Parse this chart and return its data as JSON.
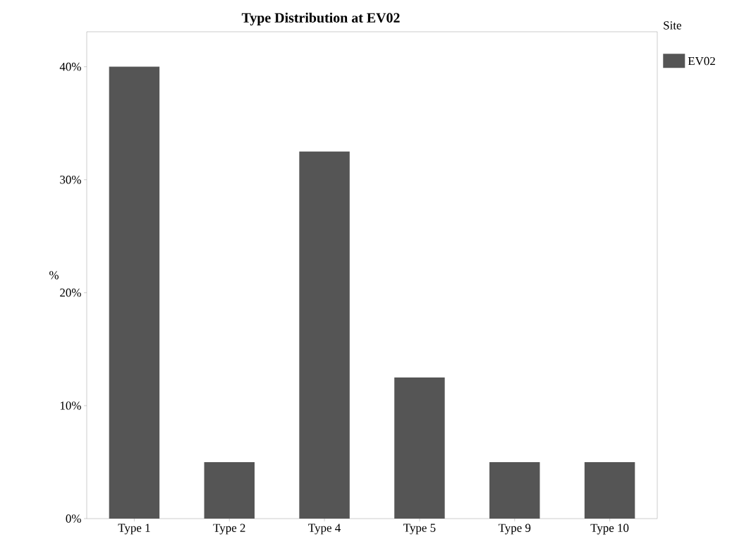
{
  "chart_data": {
    "type": "bar",
    "title": "Type Distribution at EV02",
    "ylabel": "%",
    "legend_title": "Site",
    "categories": [
      "Type 1",
      "Type 2",
      "Type 4",
      "Type 5",
      "Type 9",
      "Type 10"
    ],
    "series": [
      {
        "name": "EV02",
        "color": "#555555",
        "values": [
          40,
          5,
          32.5,
          12.5,
          5,
          5
        ]
      }
    ],
    "ylim": [
      0,
      43.1
    ],
    "yticks": [
      {
        "value": 0,
        "label": "0%"
      },
      {
        "value": 10,
        "label": "10%"
      },
      {
        "value": 20,
        "label": "20%"
      },
      {
        "value": 30,
        "label": "30%"
      },
      {
        "value": 40,
        "label": "40%"
      }
    ],
    "legend": "top right"
  }
}
